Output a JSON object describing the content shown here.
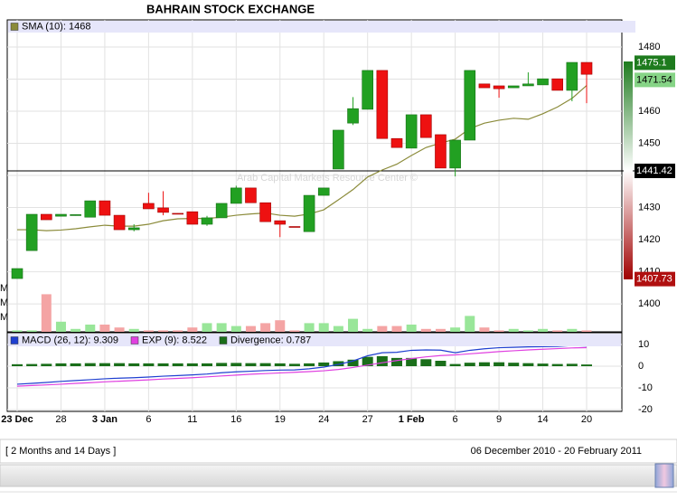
{
  "title": "BAHRAIN STOCK EXCHANGE",
  "chart_data": [
    {
      "type": "candlestick",
      "categories": [
        "23 Dec",
        null,
        null,
        "28",
        null,
        null,
        "3 Jan",
        null,
        null,
        "6",
        null,
        null,
        "11",
        null,
        null,
        "16",
        null,
        null,
        "19",
        null,
        null,
        "24",
        null,
        null,
        "27",
        null,
        null,
        "1 Feb",
        null,
        null,
        "6",
        null,
        null,
        "9",
        null,
        null,
        "14",
        null,
        null,
        "20"
      ],
      "open": [
        1407.9,
        1416.6,
        1427.9,
        1427.3,
        1427.5,
        1427.0,
        1432.1,
        1427.6,
        1423.1,
        1431.3,
        1429.9,
        1428.2,
        1428.7,
        1424.8,
        1426.8,
        1431.3,
        1436.1,
        1431.5,
        1425.9,
        1424.1,
        1422.5,
        1433.8,
        1442.0,
        1456.3,
        1460.6,
        1472.7,
        1451.5,
        1448.5,
        1458.9,
        1452.7,
        1442.3,
        1451.0,
        1468.5,
        1467.9,
        1467.3,
        1467.9,
        1468.2,
        1470.1,
        1466.5,
        1475.2
      ],
      "high": [
        1411.0,
        1427.9,
        1427.9,
        1427.9,
        1427.8,
        1432.1,
        1432.1,
        1427.6,
        1424.8,
        1434.6,
        1435.1,
        1428.2,
        1428.7,
        1427.4,
        1431.3,
        1436.8,
        1436.1,
        1431.5,
        1425.9,
        1424.1,
        1433.8,
        1436.1,
        1454.1,
        1464.4,
        1472.7,
        1472.7,
        1451.5,
        1458.9,
        1458.9,
        1452.7,
        1451.0,
        1472.7,
        1468.5,
        1467.9,
        1467.9,
        1472.1,
        1470.1,
        1470.1,
        1475.2,
        1475.2
      ],
      "low": [
        1407.9,
        1416.6,
        1426.2,
        1427.3,
        1427.5,
        1427.0,
        1427.6,
        1423.1,
        1422.6,
        1429.6,
        1427.6,
        1428.0,
        1424.8,
        1424.3,
        1426.8,
        1431.3,
        1431.5,
        1425.6,
        1420.8,
        1423.9,
        1422.5,
        1433.8,
        1442.0,
        1455.7,
        1460.6,
        1451.5,
        1448.7,
        1448.5,
        1451.8,
        1442.3,
        1439.7,
        1451.0,
        1467.3,
        1464.2,
        1467.3,
        1467.9,
        1468.2,
        1466.5,
        1463.1,
        1462.5
      ],
      "close": [
        1411.0,
        1427.9,
        1426.2,
        1427.9,
        1427.8,
        1432.1,
        1427.6,
        1423.1,
        1423.7,
        1429.6,
        1428.5,
        1428.0,
        1424.8,
        1426.8,
        1431.3,
        1436.1,
        1431.5,
        1425.6,
        1424.8,
        1423.9,
        1433.8,
        1436.1,
        1454.1,
        1460.8,
        1472.7,
        1451.5,
        1448.7,
        1458.9,
        1451.8,
        1442.3,
        1451.0,
        1472.7,
        1467.3,
        1467.0,
        1467.9,
        1468.5,
        1470.1,
        1466.5,
        1475.2,
        1471.5
      ],
      "up_color": "#22a022",
      "down_color": "#ee1111",
      "series": [
        {
          "name": "SMA (10): 1468",
          "color": "#8b8b3a",
          "values": [
            1423.1,
            1423.1,
            1422.8,
            1423.0,
            1423.4,
            1424.0,
            1424.5,
            1424.2,
            1424.2,
            1424.8,
            1425.9,
            1426.5,
            1426.6,
            1426.6,
            1427.0,
            1427.6,
            1428.0,
            1428.3,
            1427.6,
            1427.3,
            1428.0,
            1429.3,
            1432.4,
            1435.6,
            1439.5,
            1441.7,
            1443.5,
            1446.2,
            1448.7,
            1450.1,
            1451.3,
            1454.6,
            1456.3,
            1457.2,
            1457.8,
            1457.5,
            1459.2,
            1461.3,
            1464.0,
            1468.0
          ]
        }
      ],
      "ylim": [
        1391.3,
        1484.5
      ],
      "yticks": [
        1400,
        1410,
        1420,
        1430,
        1440,
        1450,
        1460,
        1470,
        1480
      ],
      "volume": {
        "up_color": "#99e699",
        "down_color": "#f4a4a4",
        "values": [
          0.1,
          0.1,
          2.6,
          0.7,
          0.2,
          0.5,
          0.5,
          0.3,
          0.2,
          0.1,
          0.1,
          0.1,
          0.3,
          0.6,
          0.6,
          0.4,
          0.4,
          0.6,
          0.8,
          0.1,
          0.6,
          0.6,
          0.4,
          0.9,
          0.2,
          0.4,
          0.4,
          0.5,
          0.2,
          0.2,
          0.3,
          1.1,
          0.3,
          0.1,
          0.2,
          0.1,
          0.2,
          0.1,
          0.2,
          0.1
        ],
        "ylim": [
          0,
          20.7
        ],
        "yticks": [
          {
            "value": 1,
            "label": "M"
          },
          {
            "value": 2,
            "label": "M"
          },
          {
            "value": 3,
            "label": "M"
          }
        ]
      },
      "price_markers": [
        {
          "value": 1475.1,
          "color": "#1e7b1e",
          "text_color": "#ffffff"
        },
        {
          "value": 1471.54,
          "color": "#86d486",
          "text_color": "#000000"
        },
        {
          "value": 1441.42,
          "color": "#000000",
          "text_color": "#ffffff",
          "line": true
        },
        {
          "value": 1407.73,
          "color": "#b01010",
          "text_color": "#ffffff"
        }
      ],
      "watermark": "Arab Capital Markets Resource Center ©",
      "grid": true
    },
    {
      "type": "macd",
      "series": [
        {
          "name": "MACD (26, 12): 9.309",
          "color": "#1f3fd0",
          "kind": "line",
          "values": [
            -8.3,
            -7.9,
            -7.5,
            -7.0,
            -6.6,
            -6.2,
            -5.8,
            -5.5,
            -5.3,
            -5.0,
            -4.6,
            -4.3,
            -4.0,
            -3.6,
            -3.0,
            -2.6,
            -2.3,
            -2.0,
            -1.8,
            -1.7,
            -1.2,
            -0.4,
            0.8,
            2.4,
            4.8,
            6.2,
            6.4,
            7.3,
            7.5,
            7.4,
            6.2,
            7.3,
            8.0,
            8.5,
            8.7,
            8.9,
            9.0,
            9.1,
            9.5,
            9.309
          ]
        },
        {
          "name": "EXP (9): 8.522",
          "color": "#e040e0",
          "kind": "line",
          "values": [
            -9.2,
            -8.9,
            -8.6,
            -8.3,
            -7.9,
            -7.6,
            -7.2,
            -6.9,
            -6.6,
            -6.3,
            -5.9,
            -5.6,
            -5.3,
            -4.9,
            -4.5,
            -4.1,
            -3.7,
            -3.4,
            -3.1,
            -2.8,
            -2.5,
            -2.1,
            -1.5,
            -0.6,
            0.5,
            1.6,
            2.6,
            3.5,
            4.3,
            4.9,
            5.2,
            5.7,
            6.2,
            6.7,
            7.1,
            7.5,
            7.8,
            8.1,
            8.4,
            8.522
          ]
        },
        {
          "name": "Divergence: 0.787",
          "color": "#1a6e1a",
          "kind": "bar",
          "values": [
            0.9,
            1.0,
            1.1,
            1.3,
            1.3,
            1.4,
            1.4,
            1.4,
            1.3,
            1.3,
            1.3,
            1.3,
            1.3,
            1.3,
            1.5,
            1.5,
            1.4,
            1.4,
            1.3,
            1.1,
            1.3,
            1.7,
            2.3,
            3.0,
            4.3,
            4.6,
            3.8,
            3.8,
            3.2,
            2.5,
            1.0,
            1.6,
            1.8,
            1.8,
            1.6,
            1.4,
            1.2,
            1.0,
            1.1,
            0.787
          ]
        }
      ],
      "ylim": [
        -20.8,
        15.4
      ],
      "yticks": [
        -20,
        -10,
        0,
        10
      ],
      "grid": true
    }
  ],
  "footer": {
    "period": "[ 2 Months and 14 Days ]",
    "range": "06 December 2010 - 20 February 2011"
  }
}
